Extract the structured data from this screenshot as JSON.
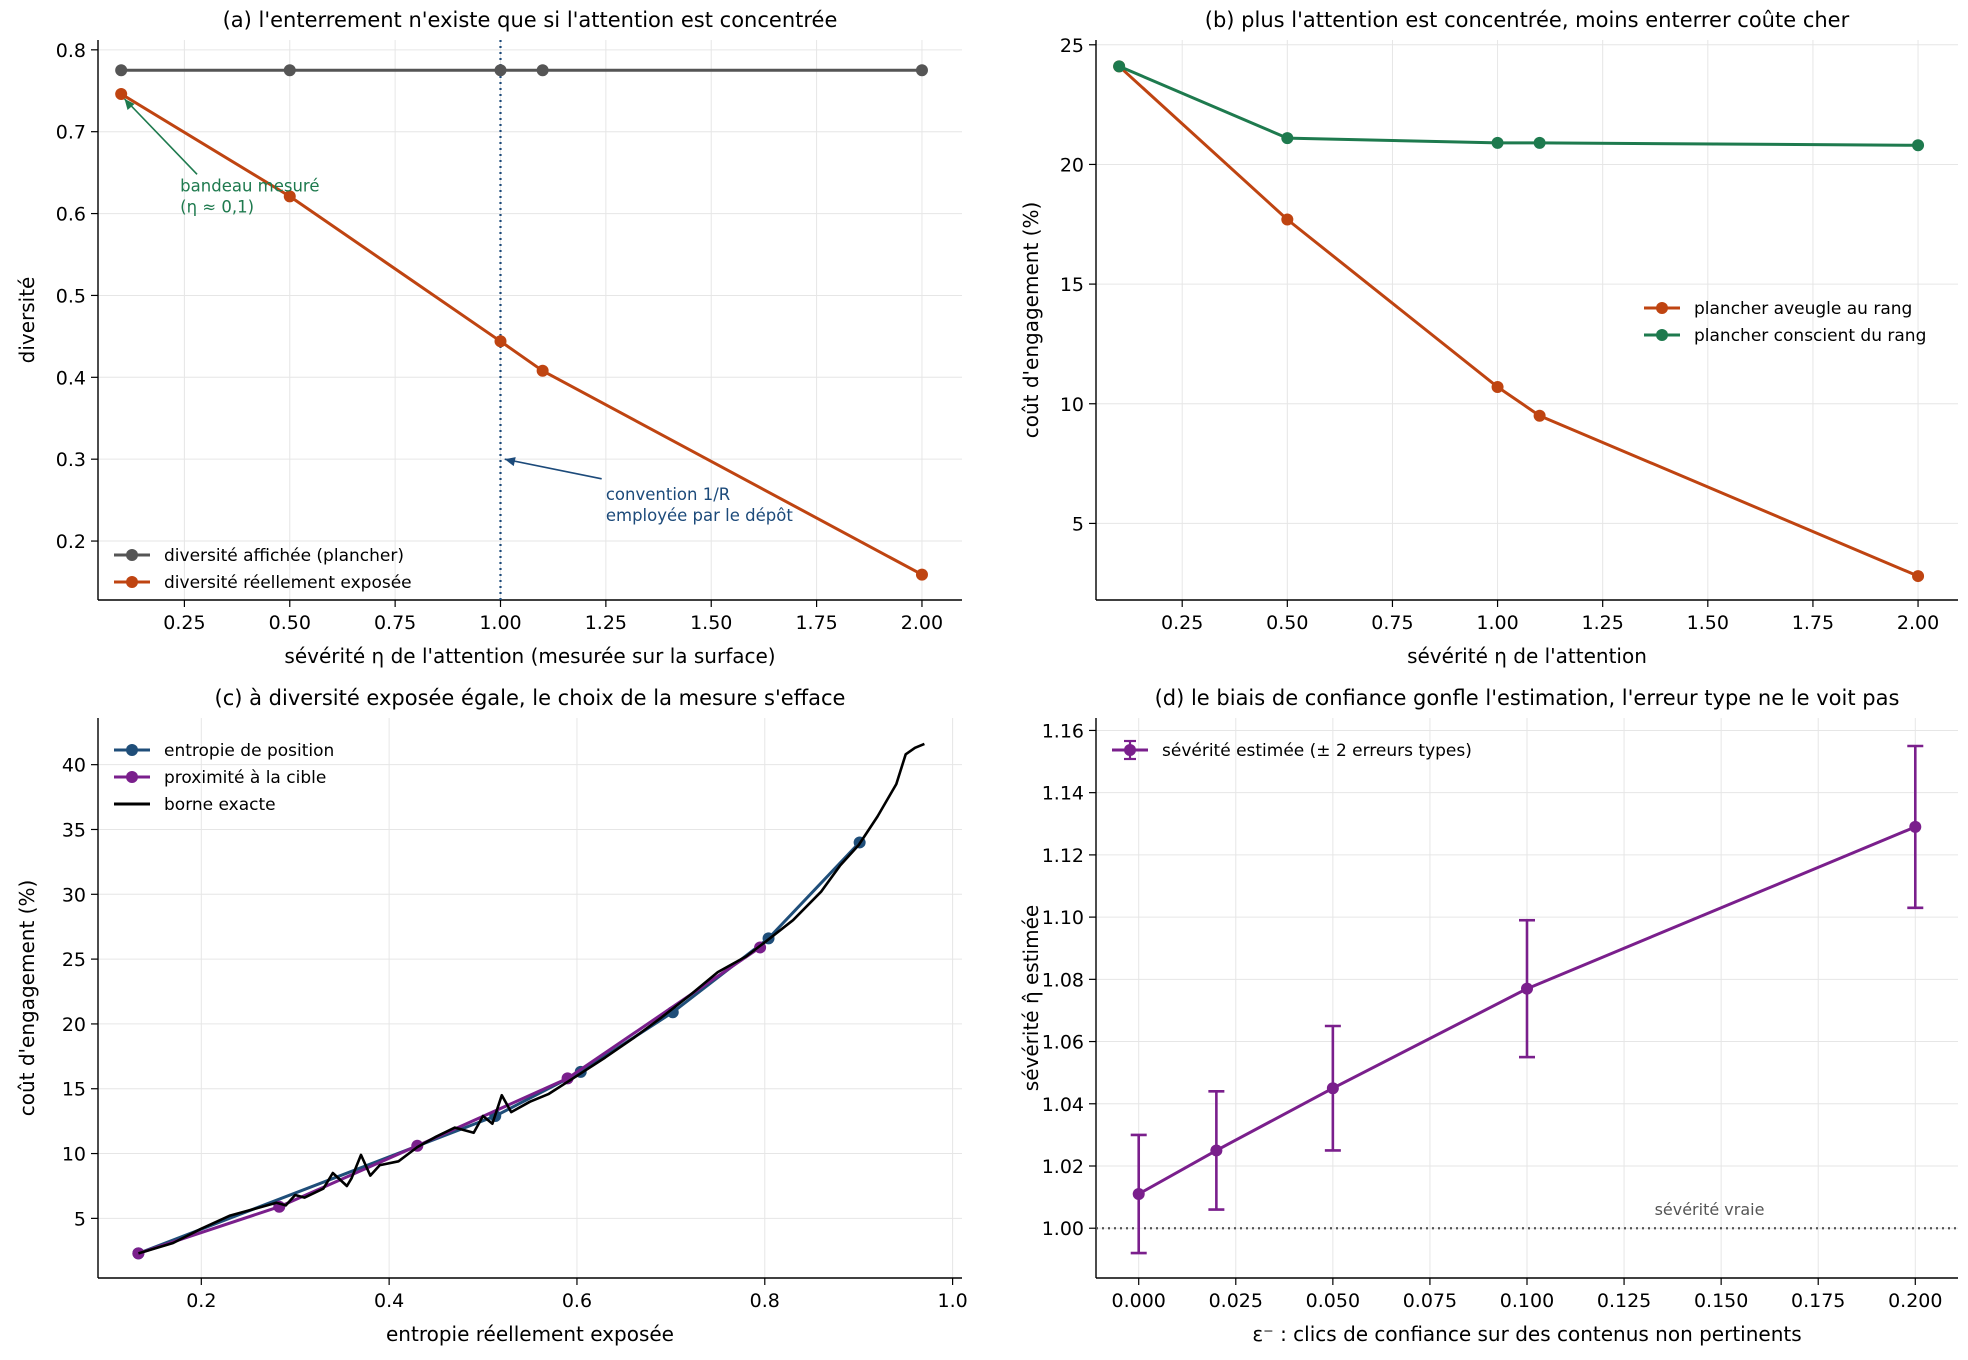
{
  "chart_data": [
    {
      "panel": "a",
      "type": "line",
      "title": "(a) l'enterrement n'existe que si l'attention est concentrée",
      "xlabel": "sévérité η de l'attention (mesurée sur la surface)",
      "ylabel": "diversité",
      "xlim": [
        0.045,
        2.095
      ],
      "ylim": [
        0.128,
        0.812
      ],
      "xticks": [
        "0.25",
        "0.50",
        "0.75",
        "1.00",
        "1.25",
        "1.50",
        "1.75",
        "2.00"
      ],
      "yticks": [
        "0.2",
        "0.3",
        "0.4",
        "0.5",
        "0.6",
        "0.7",
        "0.8"
      ],
      "grid": true,
      "legend": "lower-left",
      "series": [
        {
          "name": "diversité affichée (plancher)",
          "color": "#555555",
          "x": [
            0.1,
            0.5,
            1.0,
            1.1,
            2.0
          ],
          "y": [
            0.775,
            0.775,
            0.775,
            0.775,
            0.775
          ]
        },
        {
          "name": "diversité réellement exposée",
          "color": "#bf4411",
          "x": [
            0.1,
            0.5,
            1.0,
            1.1,
            2.0
          ],
          "y": [
            0.746,
            0.621,
            0.444,
            0.408,
            0.159
          ]
        }
      ],
      "vline": {
        "x": 1.0,
        "color": "#1c4a7a"
      },
      "annotations": [
        {
          "lines": [
            "bandeau mesuré",
            "(η ≈ 0,1)"
          ],
          "color": "#1e7a4e"
        },
        {
          "lines": [
            "convention 1/R",
            "employée par le dépôt"
          ],
          "color": "#1c4a7a"
        }
      ]
    },
    {
      "panel": "b",
      "type": "line",
      "title": "(b) plus l'attention est concentrée, moins enterrer coûte cher",
      "xlabel": "sévérité η de l'attention",
      "ylabel": "coût d'engagement (%)",
      "xlim": [
        0.045,
        2.095
      ],
      "ylim": [
        1.8,
        25.2
      ],
      "xticks": [
        "0.25",
        "0.50",
        "0.75",
        "1.00",
        "1.25",
        "1.50",
        "1.75",
        "2.00"
      ],
      "yticks": [
        "5",
        "10",
        "15",
        "20",
        "25"
      ],
      "grid": true,
      "legend": "center-right",
      "series": [
        {
          "name": "plancher aveugle au rang",
          "color": "#bf4411",
          "x": [
            0.1,
            0.5,
            1.0,
            1.1,
            2.0
          ],
          "y": [
            24.1,
            17.7,
            10.7,
            9.5,
            2.8
          ]
        },
        {
          "name": "plancher conscient du rang",
          "color": "#1e7a4e",
          "x": [
            0.1,
            0.5,
            1.0,
            1.1,
            2.0
          ],
          "y": [
            24.1,
            21.1,
            20.9,
            20.9,
            20.8
          ]
        }
      ]
    },
    {
      "panel": "c",
      "type": "line",
      "title": "(c) à diversité exposée égale, le choix de la mesure s'efface",
      "xlabel": "entropie réellement exposée",
      "ylabel": "coût d'engagement (%)",
      "xlim": [
        0.09,
        1.01
      ],
      "ylim": [
        0.4,
        43.6
      ],
      "xticks": [
        "0.2",
        "0.4",
        "0.6",
        "0.8",
        "1.0"
      ],
      "yticks": [
        "5",
        "10",
        "15",
        "20",
        "25",
        "30",
        "35",
        "40"
      ],
      "grid": true,
      "legend": "top-left",
      "series": [
        {
          "name": "entropie de position",
          "color": "#1f4e79",
          "x": [
            0.133,
            0.513,
            0.604,
            0.702,
            0.804,
            0.901
          ],
          "y": [
            2.3,
            12.9,
            16.3,
            20.9,
            26.6,
            34.0
          ]
        },
        {
          "name": "proximité à la cible",
          "color": "#7a1f8c",
          "x": [
            0.133,
            0.283,
            0.43,
            0.59,
            0.795
          ],
          "y": [
            2.3,
            5.9,
            10.6,
            15.8,
            25.9
          ]
        },
        {
          "name": "borne exacte",
          "color": "#000000",
          "x": [
            0.133,
            0.17,
            0.2,
            0.23,
            0.26,
            0.28,
            0.29,
            0.3,
            0.31,
            0.33,
            0.34,
            0.355,
            0.36,
            0.37,
            0.38,
            0.39,
            0.41,
            0.43,
            0.45,
            0.47,
            0.49,
            0.5,
            0.51,
            0.52,
            0.53,
            0.55,
            0.57,
            0.6,
            0.63,
            0.66,
            0.69,
            0.72,
            0.75,
            0.78,
            0.8,
            0.83,
            0.86,
            0.88,
            0.9,
            0.92,
            0.94,
            0.95,
            0.96,
            0.97
          ],
          "y": [
            2.3,
            3.1,
            4.2,
            5.2,
            5.8,
            6.2,
            6.0,
            6.8,
            6.6,
            7.3,
            8.5,
            7.5,
            8.1,
            9.9,
            8.3,
            9.1,
            9.4,
            10.5,
            11.3,
            12.0,
            11.6,
            12.9,
            12.3,
            14.5,
            13.2,
            14.0,
            14.6,
            16.0,
            17.4,
            18.9,
            20.5,
            22.2,
            24.0,
            25.2,
            26.3,
            28.0,
            30.2,
            32.2,
            33.8,
            36.0,
            38.5,
            40.8,
            41.3,
            41.6
          ]
        }
      ]
    },
    {
      "panel": "d",
      "type": "line",
      "title": "(d) le biais de confiance gonfle l'estimation, l'erreur type ne le voit pas",
      "xlabel": "ε⁻ : clics de confiance sur des contenus non pertinents",
      "ylabel": "sévérité η̂ estimée",
      "xlim": [
        -0.011,
        0.211
      ],
      "ylim": [
        0.984,
        1.164
      ],
      "xticks": [
        "0.000",
        "0.025",
        "0.050",
        "0.075",
        "0.100",
        "0.125",
        "0.150",
        "0.175",
        "0.200"
      ],
      "yticks": [
        "1.00",
        "1.02",
        "1.04",
        "1.06",
        "1.08",
        "1.10",
        "1.12",
        "1.14",
        "1.16"
      ],
      "grid": true,
      "legend": "top-left",
      "series": [
        {
          "name": "sévérité estimée (± 2 erreurs types)",
          "color": "#7a1f8c",
          "x": [
            0.0,
            0.02,
            0.05,
            0.1,
            0.2
          ],
          "y": [
            1.011,
            1.025,
            1.045,
            1.077,
            1.129
          ],
          "err": [
            0.019,
            0.019,
            0.02,
            0.022,
            0.026
          ]
        }
      ],
      "hline": {
        "y": 1.0,
        "label": "sévérité vraie",
        "color": "#555555"
      }
    }
  ]
}
